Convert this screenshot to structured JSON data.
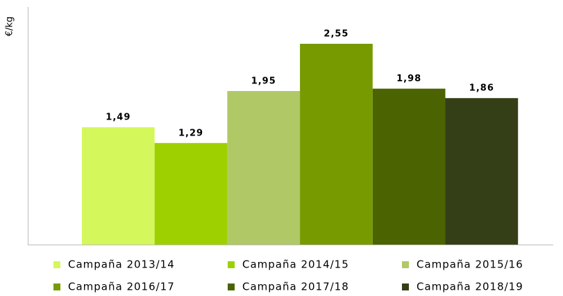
{
  "chart_data": {
    "type": "bar",
    "ylabel": "€/kg",
    "ylim": [
      0,
      3
    ],
    "series": [
      {
        "name": "Campaña 2013/14",
        "color": "#d4f75b",
        "values": [
          1.49
        ],
        "value_labels": [
          "1,49"
        ]
      },
      {
        "name": "Campaña 2014/15",
        "color": "#9ed000",
        "values": [
          1.29
        ],
        "value_labels": [
          "1,29"
        ]
      },
      {
        "name": "Campaña 2015/16",
        "color": "#b1c866",
        "values": [
          1.95
        ],
        "value_labels": [
          "1,95"
        ]
      },
      {
        "name": "Campaña 2016/17",
        "color": "#779a00",
        "values": [
          2.55
        ],
        "value_labels": [
          "2,55"
        ]
      },
      {
        "name": "Campaña 2017/18",
        "color": "#4b6300",
        "values": [
          1.98
        ],
        "value_labels": [
          "1,98"
        ]
      },
      {
        "name": "Campaña 2018/19",
        "color": "#343f18",
        "values": [
          1.86
        ],
        "value_labels": [
          "1,86"
        ]
      }
    ]
  }
}
